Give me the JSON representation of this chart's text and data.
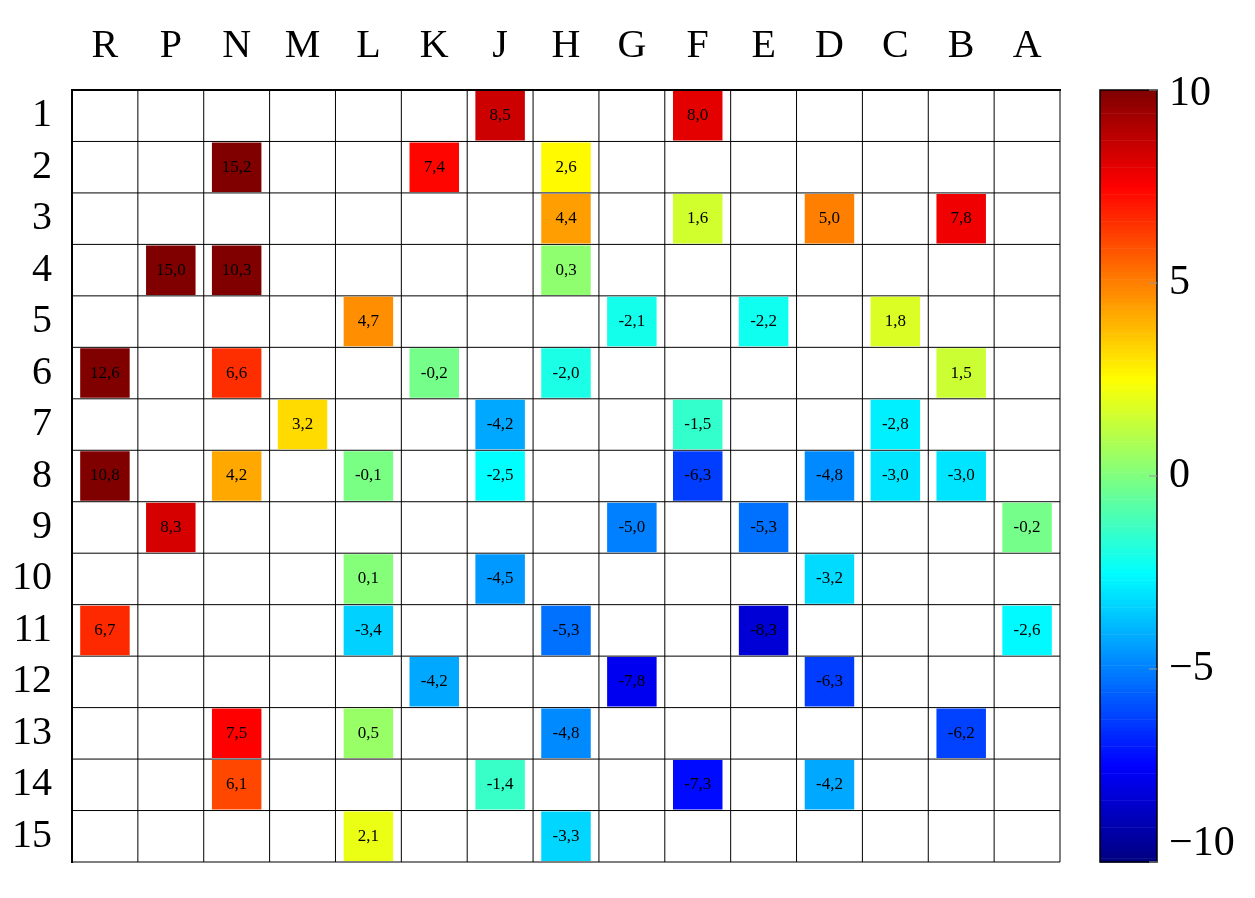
{
  "chart_data": {
    "type": "heatmap",
    "categories": [
      "R",
      "P",
      "N",
      "M",
      "L",
      "K",
      "J",
      "H",
      "G",
      "F",
      "E",
      "D",
      "C",
      "B",
      "A"
    ],
    "y_categories": [
      "1",
      "2",
      "3",
      "4",
      "5",
      "6",
      "7",
      "8",
      "9",
      "10",
      "11",
      "12",
      "13",
      "14",
      "15"
    ],
    "cells": [
      [
        null,
        null,
        null,
        null,
        null,
        null,
        8.5,
        null,
        null,
        8.0,
        null,
        null,
        null,
        null,
        null
      ],
      [
        null,
        null,
        15.2,
        null,
        null,
        7.4,
        null,
        2.6,
        null,
        null,
        null,
        null,
        null,
        null,
        null
      ],
      [
        null,
        null,
        null,
        null,
        null,
        null,
        null,
        4.4,
        null,
        1.6,
        null,
        5.0,
        null,
        7.8,
        null
      ],
      [
        null,
        15.0,
        10.3,
        null,
        null,
        null,
        null,
        0.3,
        null,
        null,
        null,
        null,
        null,
        null,
        null
      ],
      [
        null,
        null,
        null,
        null,
        4.7,
        null,
        null,
        null,
        -2.1,
        null,
        -2.2,
        null,
        1.8,
        null,
        null
      ],
      [
        12.6,
        null,
        6.6,
        null,
        null,
        -0.2,
        null,
        -2.0,
        null,
        null,
        null,
        null,
        null,
        1.5,
        null
      ],
      [
        null,
        null,
        null,
        3.2,
        null,
        null,
        -4.2,
        null,
        null,
        -1.5,
        null,
        null,
        -2.8,
        null,
        null
      ],
      [
        10.8,
        null,
        4.2,
        null,
        -0.1,
        null,
        -2.5,
        null,
        null,
        -6.3,
        null,
        -4.8,
        -3.0,
        -3.0,
        null
      ],
      [
        null,
        8.3,
        null,
        null,
        null,
        null,
        null,
        null,
        -5.0,
        null,
        -5.3,
        null,
        null,
        null,
        -0.2
      ],
      [
        null,
        null,
        null,
        null,
        0.1,
        null,
        -4.5,
        null,
        null,
        null,
        null,
        -3.2,
        null,
        null,
        null
      ],
      [
        6.7,
        null,
        null,
        null,
        -3.4,
        null,
        null,
        -5.3,
        null,
        null,
        -8.3,
        null,
        null,
        null,
        -2.6
      ],
      [
        null,
        null,
        null,
        null,
        null,
        -4.2,
        null,
        null,
        -7.8,
        null,
        null,
        -6.3,
        null,
        null,
        null
      ],
      [
        null,
        null,
        7.5,
        null,
        0.5,
        null,
        null,
        -4.8,
        null,
        null,
        null,
        null,
        null,
        -6.2,
        null
      ],
      [
        null,
        null,
        6.1,
        null,
        null,
        null,
        -1.4,
        null,
        null,
        -7.3,
        null,
        -4.2,
        null,
        null,
        null
      ],
      [
        null,
        null,
        null,
        null,
        2.1,
        null,
        null,
        -3.3,
        null,
        null,
        null,
        null,
        null,
        null,
        null
      ]
    ],
    "cell_labels": [
      [
        null,
        null,
        null,
        null,
        null,
        null,
        "8,5",
        null,
        null,
        "8,0",
        null,
        null,
        null,
        null,
        null
      ],
      [
        null,
        null,
        "15,2",
        null,
        null,
        "7,4",
        null,
        "2,6",
        null,
        null,
        null,
        null,
        null,
        null,
        null
      ],
      [
        null,
        null,
        null,
        null,
        null,
        null,
        null,
        "4,4",
        null,
        "1,6",
        null,
        "5,0",
        null,
        "7,8",
        null
      ],
      [
        null,
        "15,0",
        "10,3",
        null,
        null,
        null,
        null,
        "0,3",
        null,
        null,
        null,
        null,
        null,
        null,
        null
      ],
      [
        null,
        null,
        null,
        null,
        "4,7",
        null,
        null,
        null,
        "-2,1",
        null,
        "-2,2",
        null,
        "1,8",
        null,
        null
      ],
      [
        "12,6",
        null,
        "6,6",
        null,
        null,
        "-0,2",
        null,
        "-2,0",
        null,
        null,
        null,
        null,
        null,
        "1,5",
        null
      ],
      [
        null,
        null,
        null,
        "3,2",
        null,
        null,
        "-4,2",
        null,
        null,
        "-1,5",
        null,
        null,
        "-2,8",
        null,
        null
      ],
      [
        "10,8",
        null,
        "4,2",
        null,
        "-0,1",
        null,
        "-2,5",
        null,
        null,
        "-6,3",
        null,
        "-4,8",
        "-3,0",
        "-3,0",
        null
      ],
      [
        null,
        "8,3",
        null,
        null,
        null,
        null,
        null,
        null,
        "-5,0",
        null,
        "-5,3",
        null,
        null,
        null,
        "-0,2"
      ],
      [
        null,
        null,
        null,
        null,
        "0,1",
        null,
        "-4,5",
        null,
        null,
        null,
        null,
        "-3,2",
        null,
        null,
        null
      ],
      [
        "6,7",
        null,
        null,
        null,
        "-3,4",
        null,
        null,
        "-5,3",
        null,
        null,
        "-8,3",
        null,
        null,
        null,
        "-2,6"
      ],
      [
        null,
        null,
        null,
        null,
        null,
        "-4,2",
        null,
        null,
        "-7,8",
        null,
        null,
        "-6,3",
        null,
        null,
        null
      ],
      [
        null,
        null,
        "7,5",
        null,
        "0,5",
        null,
        null,
        "-4,8",
        null,
        null,
        null,
        null,
        null,
        "-6,2",
        null
      ],
      [
        null,
        null,
        "6,1",
        null,
        null,
        null,
        "-1,4",
        null,
        null,
        "-7,3",
        null,
        "-4,2",
        null,
        null,
        null
      ],
      [
        null,
        null,
        null,
        null,
        "2,1",
        null,
        null,
        "-3,3",
        null,
        null,
        null,
        null,
        null,
        null,
        null
      ]
    ],
    "clim": [
      -10,
      10
    ],
    "cticks": [
      10,
      5,
      0,
      {
        "value": -5,
        "label": "−5"
      },
      {
        "value": -10,
        "label": "−10"
      }
    ],
    "grid": true
  }
}
